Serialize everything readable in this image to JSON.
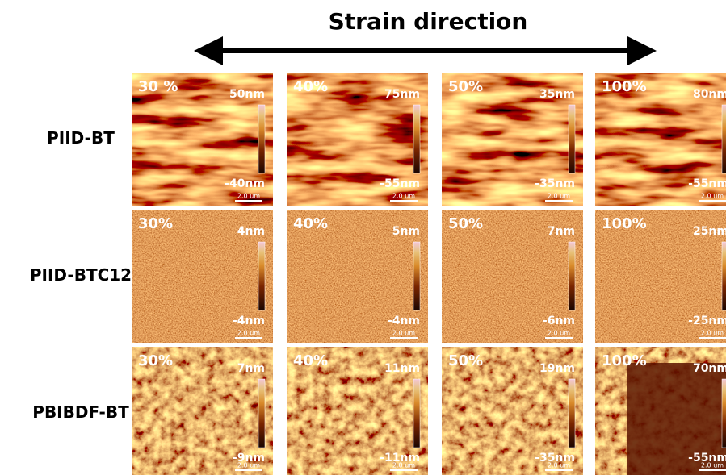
{
  "title": "Strain direction",
  "rows": [
    {
      "label": "PIID-BT",
      "panels": [
        {
          "strain": "30 %",
          "max": "50nm",
          "min": "-40nm",
          "scale_bar": "2.0 um"
        },
        {
          "strain": "40%",
          "max": "75nm",
          "min": "-55nm",
          "scale_bar": "2.0 um"
        },
        {
          "strain": "50%",
          "max": "35nm",
          "min": "-35nm",
          "scale_bar": "2.0 um"
        },
        {
          "strain": "100%",
          "max": "80nm",
          "min": "-55nm",
          "scale_bar": "2.0 um"
        }
      ]
    },
    {
      "label": "PIID-BTC12",
      "panels": [
        {
          "strain": "30%",
          "max": "4nm",
          "min": "-4nm",
          "scale_bar": "2.0 um"
        },
        {
          "strain": "40%",
          "max": "5nm",
          "min": "-4nm",
          "scale_bar": "2.0 um"
        },
        {
          "strain": "50%",
          "max": "7nm",
          "min": "-6nm",
          "scale_bar": "2.0 um"
        },
        {
          "strain": "100%",
          "max": "25nm",
          "min": "-25nm",
          "scale_bar": "2.0 um"
        }
      ]
    },
    {
      "label": "PBIBDF-BT",
      "panels": [
        {
          "strain": "30%",
          "max": "7nm",
          "min": "-9nm",
          "scale_bar": "2.0 um"
        },
        {
          "strain": "40%",
          "max": "11nm",
          "min": "-11nm",
          "scale_bar": "2.0 um"
        },
        {
          "strain": "50%",
          "max": "19nm",
          "min": "-35nm",
          "scale_bar": "2.0 um"
        },
        {
          "strain": "100%",
          "max": "70nm",
          "min": "-55nm",
          "scale_bar": "2.0 um"
        }
      ]
    }
  ]
}
